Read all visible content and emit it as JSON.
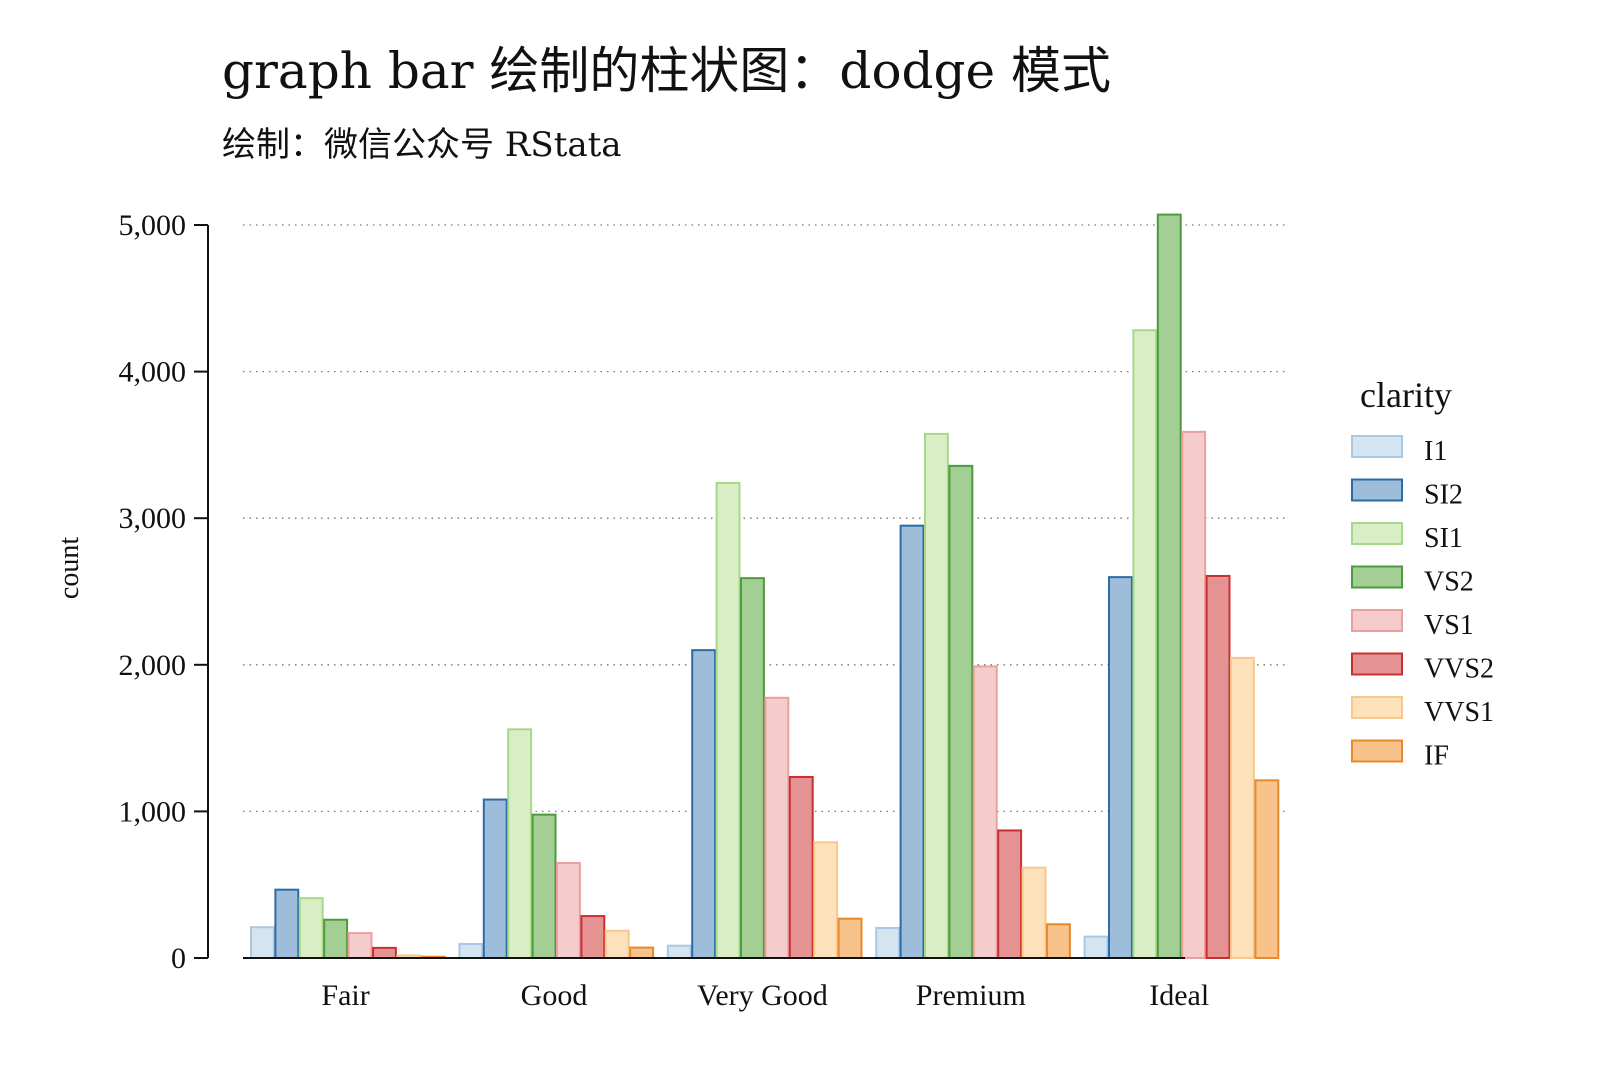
{
  "chart_data": {
    "type": "bar",
    "mode": "grouped",
    "title": "graph bar 绘制的柱状图：dodge 模式",
    "subtitle": "绘制：微信公众号 RStata",
    "xlabel": "",
    "ylabel": "count",
    "ylim": [
      0,
      5000
    ],
    "yticks": [
      0,
      1000,
      2000,
      3000,
      4000,
      5000
    ],
    "ytick_labels": [
      "0",
      "1,000",
      "2,000",
      "3,000",
      "4,000",
      "5,000"
    ],
    "grid": "horizontal-dotted",
    "legend": {
      "title": "clarity",
      "position": "right"
    },
    "categories": [
      "Fair",
      "Good",
      "Very Good",
      "Premium",
      "Ideal"
    ],
    "series": [
      {
        "name": "I1",
        "fill": "#d4e4f1",
        "stroke": "#a9c8e2",
        "values": [
          210,
          96,
          84,
          205,
          146
        ]
      },
      {
        "name": "SI2",
        "fill": "#9dbdda",
        "stroke": "#2e6aa8",
        "values": [
          466,
          1081,
          2100,
          2949,
          2598
        ]
      },
      {
        "name": "SI1",
        "fill": "#d9eec4",
        "stroke": "#a7d88a",
        "values": [
          408,
          1560,
          3240,
          3575,
          4282
        ]
      },
      {
        "name": "VS2",
        "fill": "#a3cf95",
        "stroke": "#4e9a3e",
        "values": [
          261,
          978,
          2591,
          3357,
          5071
        ]
      },
      {
        "name": "VS1",
        "fill": "#f5cccc",
        "stroke": "#ec9f9f",
        "values": [
          170,
          648,
          1775,
          1989,
          3589
        ]
      },
      {
        "name": "VVS2",
        "fill": "#e59292",
        "stroke": "#c8302f",
        "values": [
          69,
          286,
          1235,
          870,
          2606
        ]
      },
      {
        "name": "VVS1",
        "fill": "#fde1bb",
        "stroke": "#f7c88c",
        "values": [
          17,
          186,
          789,
          616,
          2047
        ]
      },
      {
        "name": "IF",
        "fill": "#f7c38a",
        "stroke": "#e8892b",
        "values": [
          9,
          71,
          268,
          230,
          1212
        ]
      }
    ]
  }
}
